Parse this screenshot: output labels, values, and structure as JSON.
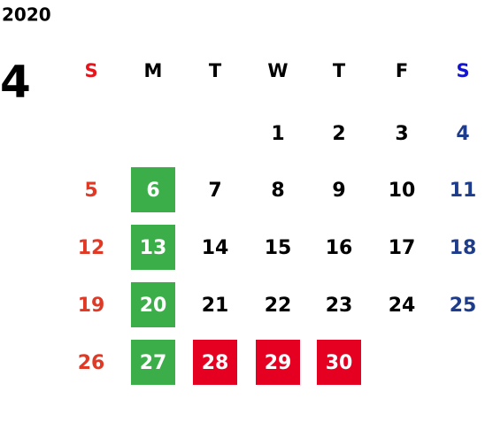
{
  "year": "2020",
  "month": "4",
  "weekdays": [
    {
      "label": "S",
      "color": "#e8141c",
      "day_color": "#e03a26"
    },
    {
      "label": "M",
      "color": "#000000",
      "day_color": "#000000"
    },
    {
      "label": "T",
      "color": "#000000",
      "day_color": "#000000"
    },
    {
      "label": "W",
      "color": "#000000",
      "day_color": "#000000"
    },
    {
      "label": "T",
      "color": "#000000",
      "day_color": "#000000"
    },
    {
      "label": "F",
      "color": "#000000",
      "day_color": "#000000"
    },
    {
      "label": "S",
      "color": "#1414d2",
      "day_color": "#1e3c8c"
    }
  ],
  "weeks": [
    [
      null,
      null,
      null,
      {
        "day": "1"
      },
      {
        "day": "2"
      },
      {
        "day": "3"
      },
      {
        "day": "4"
      }
    ],
    [
      {
        "day": "5"
      },
      {
        "day": "6",
        "fill": "#3bae49"
      },
      {
        "day": "7"
      },
      {
        "day": "8"
      },
      {
        "day": "9"
      },
      {
        "day": "10"
      },
      {
        "day": "11"
      }
    ],
    [
      {
        "day": "12"
      },
      {
        "day": "13",
        "fill": "#3bae49"
      },
      {
        "day": "14"
      },
      {
        "day": "15"
      },
      {
        "day": "16"
      },
      {
        "day": "17"
      },
      {
        "day": "18"
      }
    ],
    [
      {
        "day": "19"
      },
      {
        "day": "20",
        "fill": "#3bae49"
      },
      {
        "day": "21"
      },
      {
        "day": "22"
      },
      {
        "day": "23"
      },
      {
        "day": "24"
      },
      {
        "day": "25"
      }
    ],
    [
      {
        "day": "26"
      },
      {
        "day": "27",
        "fill": "#3bae49"
      },
      {
        "day": "28",
        "fill": "#e50021"
      },
      {
        "day": "29",
        "fill": "#e50021"
      },
      {
        "day": "30",
        "fill": "#e50021"
      },
      null,
      null
    ]
  ]
}
